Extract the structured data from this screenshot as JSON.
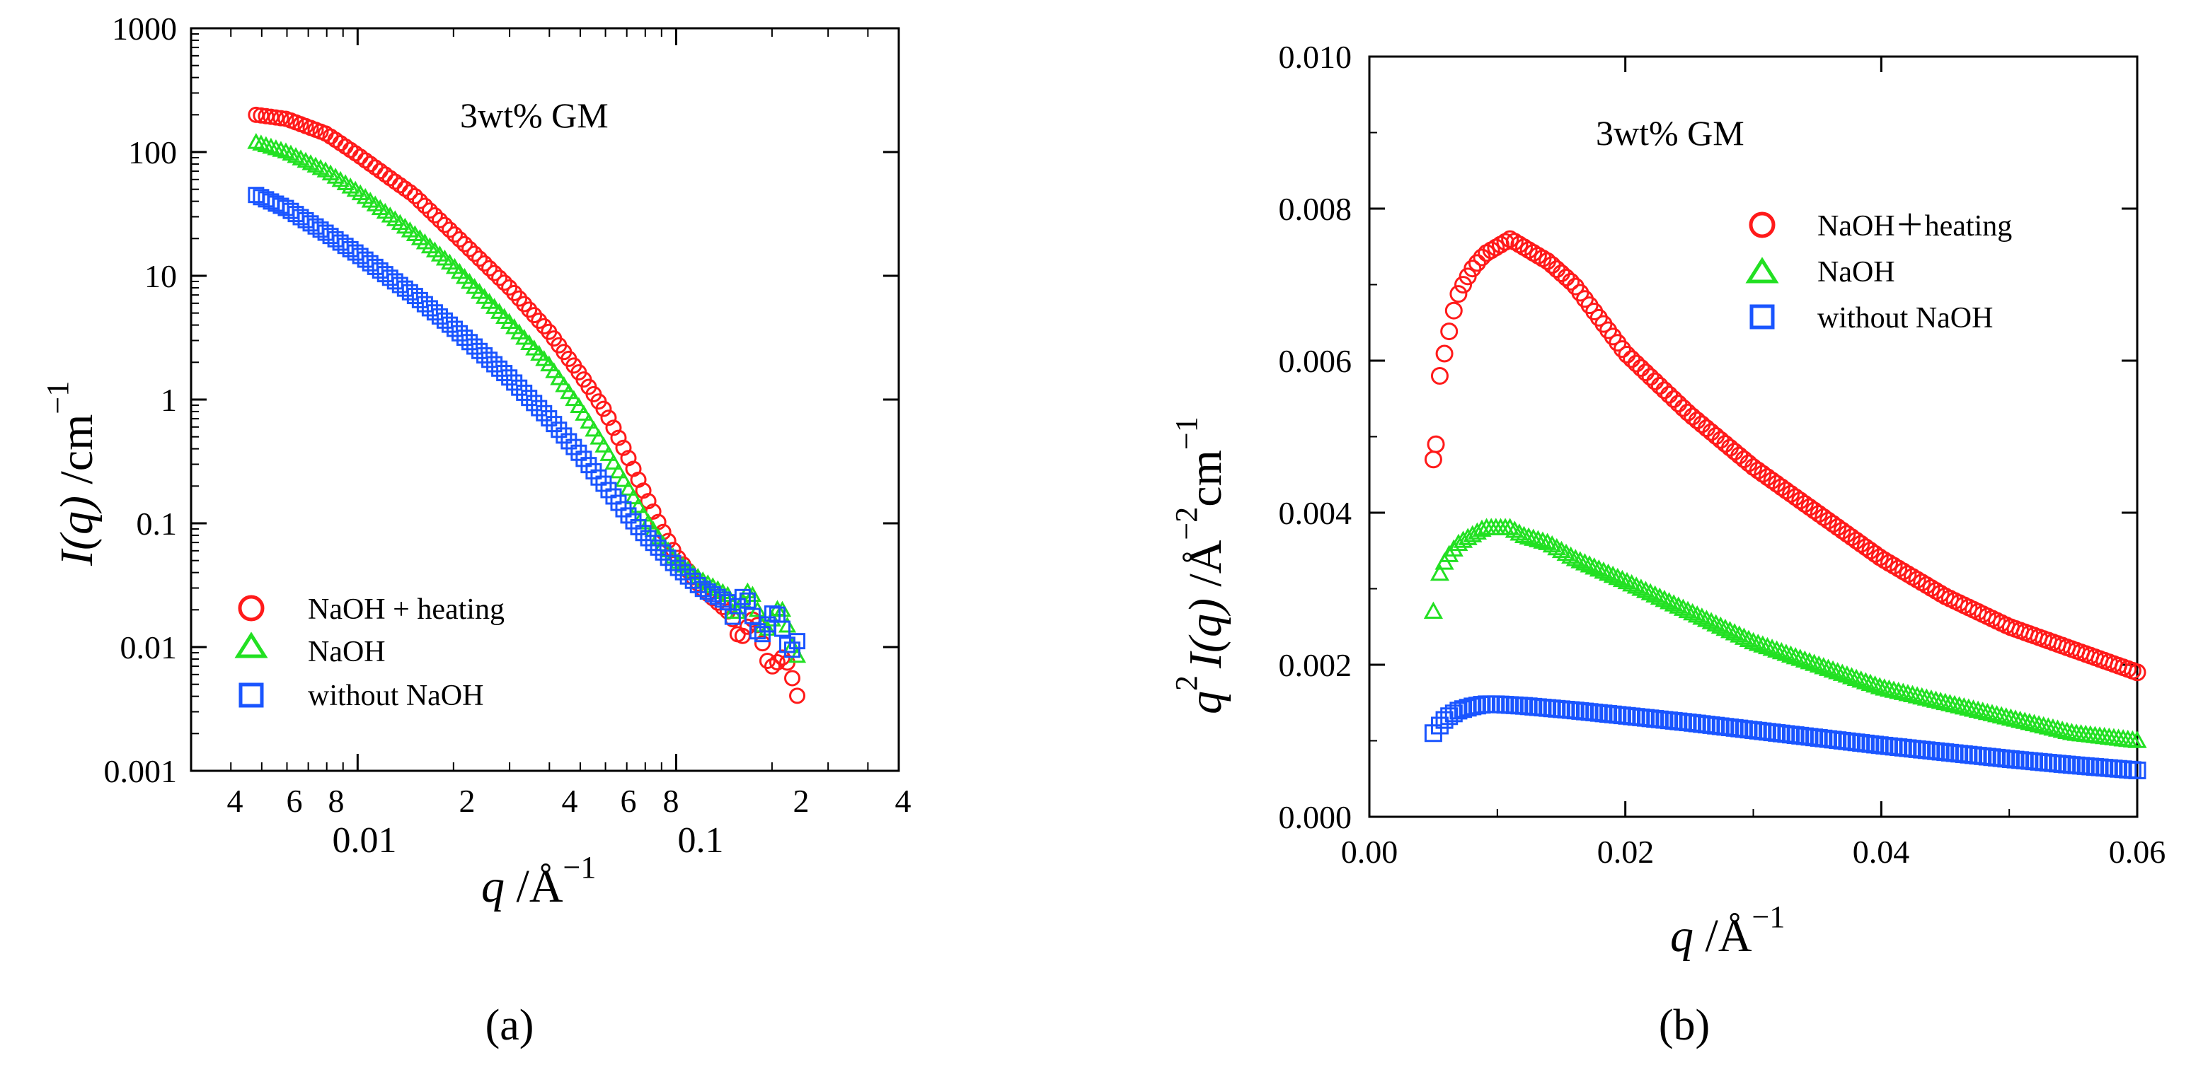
{
  "chart_data": [
    {
      "panel": "a",
      "type": "scatter",
      "title": "",
      "annotation": "3wt% GM",
      "xscale": "log",
      "yscale": "log",
      "xlim": [
        0.003,
        0.5
      ],
      "ylim": [
        0.001,
        1000
      ],
      "xlabel": {
        "main": "q",
        "unit": " /Å",
        "sup": "−1"
      },
      "ylabel": {
        "main": "I(q)",
        "unit": " /cm",
        "sup": "−1"
      },
      "xticks_major": [
        "0.01",
        "0.1"
      ],
      "xticks_minor": [
        "4",
        "6",
        "8",
        "2",
        "4",
        "6",
        "8",
        "2",
        "4"
      ],
      "yticks": [
        "1000",
        "100",
        "10",
        "1",
        "0.1",
        "0.01",
        "0.001"
      ],
      "legend": {
        "position": "lower-left",
        "entries": [
          "NaOH + heating",
          "NaOH",
          "without NaOH"
        ]
      },
      "panel_label": "(a)",
      "series": [
        {
          "name": "NaOH + heating",
          "marker": "circle",
          "color": "#ff1a1a",
          "x": [
            0.0048,
            0.006,
            0.008,
            0.01,
            0.015,
            0.02,
            0.03,
            0.04,
            0.05,
            0.06,
            0.07,
            0.08,
            0.09,
            0.1,
            0.12,
            0.15,
            0.18,
            0.2,
            0.22,
            0.24
          ],
          "y": [
            200,
            185,
            140,
            95,
            45,
            22,
            8,
            3.5,
            1.6,
            0.8,
            0.36,
            0.17,
            0.09,
            0.055,
            0.03,
            0.018,
            0.012,
            0.009,
            0.006,
            0.005
          ]
        },
        {
          "name": "NaOH",
          "marker": "triangle",
          "color": "#22e022",
          "x": [
            0.0048,
            0.006,
            0.008,
            0.01,
            0.015,
            0.02,
            0.03,
            0.04,
            0.05,
            0.06,
            0.07,
            0.08,
            0.09,
            0.1,
            0.12,
            0.15,
            0.18,
            0.2,
            0.22,
            0.24
          ],
          "y": [
            120,
            100,
            70,
            48,
            22,
            12,
            4.2,
            1.9,
            0.85,
            0.4,
            0.2,
            0.11,
            0.07,
            0.05,
            0.035,
            0.025,
            0.02,
            0.017,
            0.015,
            0.011
          ]
        },
        {
          "name": "without NaOH",
          "marker": "square",
          "color": "#1a55ff",
          "x": [
            0.0048,
            0.006,
            0.008,
            0.01,
            0.015,
            0.02,
            0.03,
            0.04,
            0.05,
            0.06,
            0.07,
            0.08,
            0.09,
            0.1,
            0.12,
            0.15,
            0.18,
            0.2,
            0.22,
            0.24
          ],
          "y": [
            45,
            35,
            22,
            15,
            7,
            3.8,
            1.5,
            0.7,
            0.36,
            0.2,
            0.12,
            0.08,
            0.06,
            0.045,
            0.03,
            0.022,
            0.017,
            0.015,
            0.013,
            0.012
          ]
        }
      ]
    },
    {
      "panel": "b",
      "type": "scatter",
      "title": "",
      "annotation": "3wt% GM",
      "xscale": "linear",
      "yscale": "linear",
      "xlim": [
        0,
        0.06
      ],
      "ylim": [
        0,
        0.01
      ],
      "xlabel": {
        "main": "q",
        "unit": " /Å",
        "sup": "−1"
      },
      "ylabel": {
        "pre": "q",
        "pre_sup": "2",
        "main": "I(q)",
        "unit": " /Å",
        "sup1": "−2",
        "unit2": "cm",
        "sup2": "−1"
      },
      "xticks": [
        "0.00",
        "0.02",
        "0.04",
        "0.06"
      ],
      "xtick_values": [
        0,
        0.02,
        0.04,
        0.06
      ],
      "yticks": [
        "0.000",
        "0.002",
        "0.004",
        "0.006",
        "0.008",
        "0.010"
      ],
      "ytick_values": [
        0,
        0.002,
        0.004,
        0.006,
        0.008,
        0.01
      ],
      "legend": {
        "position": "top-right",
        "entries": [
          "NaOH＋heating",
          "NaOH",
          "without NaOH"
        ]
      },
      "panel_label": "(b)",
      "series": [
        {
          "name": "NaOH＋heating",
          "marker": "circle",
          "color": "#ff1a1a",
          "x": [
            0.005,
            0.0052,
            0.0055,
            0.006,
            0.0065,
            0.007,
            0.008,
            0.009,
            0.01,
            0.011,
            0.012,
            0.014,
            0.016,
            0.02,
            0.025,
            0.03,
            0.035,
            0.04,
            0.045,
            0.05,
            0.055,
            0.06
          ],
          "y": [
            0.0047,
            0.0049,
            0.0058,
            0.0062,
            0.0066,
            0.0069,
            0.0072,
            0.0074,
            0.0075,
            0.0076,
            0.0075,
            0.0073,
            0.007,
            0.0061,
            0.0053,
            0.0046,
            0.004,
            0.0034,
            0.0029,
            0.0025,
            0.0022,
            0.0019
          ]
        },
        {
          "name": "NaOH",
          "marker": "triangle",
          "color": "#22e022",
          "x": [
            0.005,
            0.0055,
            0.006,
            0.007,
            0.008,
            0.009,
            0.01,
            0.011,
            0.012,
            0.014,
            0.016,
            0.02,
            0.025,
            0.03,
            0.035,
            0.04,
            0.045,
            0.05,
            0.055,
            0.06
          ],
          "y": [
            0.0027,
            0.0032,
            0.0034,
            0.0036,
            0.0037,
            0.0038,
            0.0038,
            0.0038,
            0.0037,
            0.0036,
            0.0034,
            0.0031,
            0.0027,
            0.0023,
            0.002,
            0.0017,
            0.0015,
            0.0013,
            0.0011,
            0.001
          ]
        },
        {
          "name": "without NaOH",
          "marker": "square",
          "color": "#1a55ff",
          "x": [
            0.005,
            0.0055,
            0.006,
            0.007,
            0.008,
            0.009,
            0.01,
            0.011,
            0.012,
            0.014,
            0.016,
            0.02,
            0.025,
            0.03,
            0.035,
            0.04,
            0.045,
            0.05,
            0.055,
            0.06
          ],
          "y": [
            0.0011,
            0.0012,
            0.0013,
            0.0014,
            0.00145,
            0.00148,
            0.00148,
            0.00147,
            0.00146,
            0.00143,
            0.0014,
            0.00133,
            0.00124,
            0.00114,
            0.00104,
            0.00094,
            0.00085,
            0.00076,
            0.00068,
            0.00061
          ]
        }
      ]
    }
  ]
}
